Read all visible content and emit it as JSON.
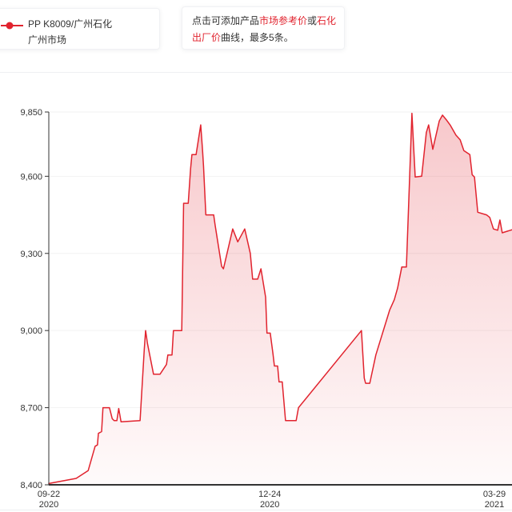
{
  "colors": {
    "accent": "#e1232e",
    "text": "#333333"
  },
  "legend": {
    "line1": "PP K8009/广州石化",
    "line2": "广州市场"
  },
  "tip": {
    "part1": "点击可添加产品",
    "part2": "市场参考价",
    "part3": "或",
    "part4": "石化",
    "part5": "出厂价",
    "part6": "曲线，最多5条。"
  },
  "chart_data": {
    "type": "area",
    "title": "",
    "xlabel": "",
    "ylabel": "",
    "ylim": [
      8400,
      9850
    ],
    "yticks": [
      8400,
      8700,
      9000,
      9300,
      9600,
      9850
    ],
    "ytick_labels": [
      "8,400",
      "8,700",
      "9,000",
      "9,300",
      "9,600",
      "9,850"
    ],
    "xticks": [
      {
        "pos": 0.0,
        "line1": "09-22",
        "line2": "2020"
      },
      {
        "pos": 0.477,
        "line1": "12-24",
        "line2": "2020"
      },
      {
        "pos": 0.962,
        "line1": "03-29",
        "line2": "2021"
      }
    ],
    "grid": "on",
    "grid_color": "#f2f2f2",
    "axis_color": "#333333",
    "tick_label_color": "#333333",
    "fill_top": "rgba(225,35,47,0.25)",
    "fill_bottom": "rgba(225,35,47,0.02)",
    "legend_position": "top-left",
    "series": [
      {
        "name": "PP K8009/广州石化 广州市场",
        "color": "#e1232e",
        "points": [
          [
            0.0,
            8405
          ],
          [
            0.059,
            8425
          ],
          [
            0.085,
            8455
          ],
          [
            0.1,
            8550
          ],
          [
            0.105,
            8555
          ],
          [
            0.107,
            8600
          ],
          [
            0.114,
            8607
          ],
          [
            0.117,
            8700
          ],
          [
            0.131,
            8700
          ],
          [
            0.137,
            8657
          ],
          [
            0.141,
            8650
          ],
          [
            0.147,
            8650
          ],
          [
            0.151,
            8697
          ],
          [
            0.156,
            8645
          ],
          [
            0.197,
            8650
          ],
          [
            0.206,
            8925
          ],
          [
            0.209,
            9000
          ],
          [
            0.213,
            8950
          ],
          [
            0.226,
            8830
          ],
          [
            0.24,
            8830
          ],
          [
            0.254,
            8868
          ],
          [
            0.257,
            8905
          ],
          [
            0.266,
            8905
          ],
          [
            0.269,
            9000
          ],
          [
            0.287,
            9000
          ],
          [
            0.291,
            9495
          ],
          [
            0.301,
            9495
          ],
          [
            0.306,
            9628
          ],
          [
            0.309,
            9684
          ],
          [
            0.318,
            9684
          ],
          [
            0.321,
            9720
          ],
          [
            0.328,
            9800
          ],
          [
            0.332,
            9700
          ],
          [
            0.334,
            9640
          ],
          [
            0.339,
            9450
          ],
          [
            0.356,
            9450
          ],
          [
            0.359,
            9410
          ],
          [
            0.373,
            9250
          ],
          [
            0.377,
            9240
          ],
          [
            0.397,
            9395
          ],
          [
            0.408,
            9345
          ],
          [
            0.423,
            9395
          ],
          [
            0.435,
            9300
          ],
          [
            0.44,
            9200
          ],
          [
            0.451,
            9200
          ],
          [
            0.458,
            9240
          ],
          [
            0.468,
            9130
          ],
          [
            0.471,
            8990
          ],
          [
            0.478,
            8990
          ],
          [
            0.484,
            8910
          ],
          [
            0.487,
            8862
          ],
          [
            0.494,
            8862
          ],
          [
            0.497,
            8800
          ],
          [
            0.504,
            8800
          ],
          [
            0.511,
            8650
          ],
          [
            0.534,
            8650
          ],
          [
            0.539,
            8700
          ],
          [
            0.675,
            9000
          ],
          [
            0.681,
            8815
          ],
          [
            0.684,
            8795
          ],
          [
            0.693,
            8795
          ],
          [
            0.706,
            8905
          ],
          [
            0.736,
            9080
          ],
          [
            0.746,
            9120
          ],
          [
            0.753,
            9165
          ],
          [
            0.762,
            9247
          ],
          [
            0.772,
            9247
          ],
          [
            0.784,
            9845
          ],
          [
            0.791,
            9597
          ],
          [
            0.805,
            9600
          ],
          [
            0.815,
            9770
          ],
          [
            0.82,
            9800
          ],
          [
            0.829,
            9705
          ],
          [
            0.843,
            9815
          ],
          [
            0.85,
            9838
          ],
          [
            0.858,
            9820
          ],
          [
            0.867,
            9798
          ],
          [
            0.879,
            9760
          ],
          [
            0.888,
            9742
          ],
          [
            0.896,
            9700
          ],
          [
            0.909,
            9684
          ],
          [
            0.914,
            9606
          ],
          [
            0.919,
            9597
          ],
          [
            0.926,
            9460
          ],
          [
            0.945,
            9450
          ],
          [
            0.952,
            9440
          ],
          [
            0.96,
            9395
          ],
          [
            0.969,
            9390
          ],
          [
            0.974,
            9430
          ],
          [
            0.979,
            9380
          ],
          [
            1.0,
            9392
          ]
        ]
      }
    ]
  }
}
